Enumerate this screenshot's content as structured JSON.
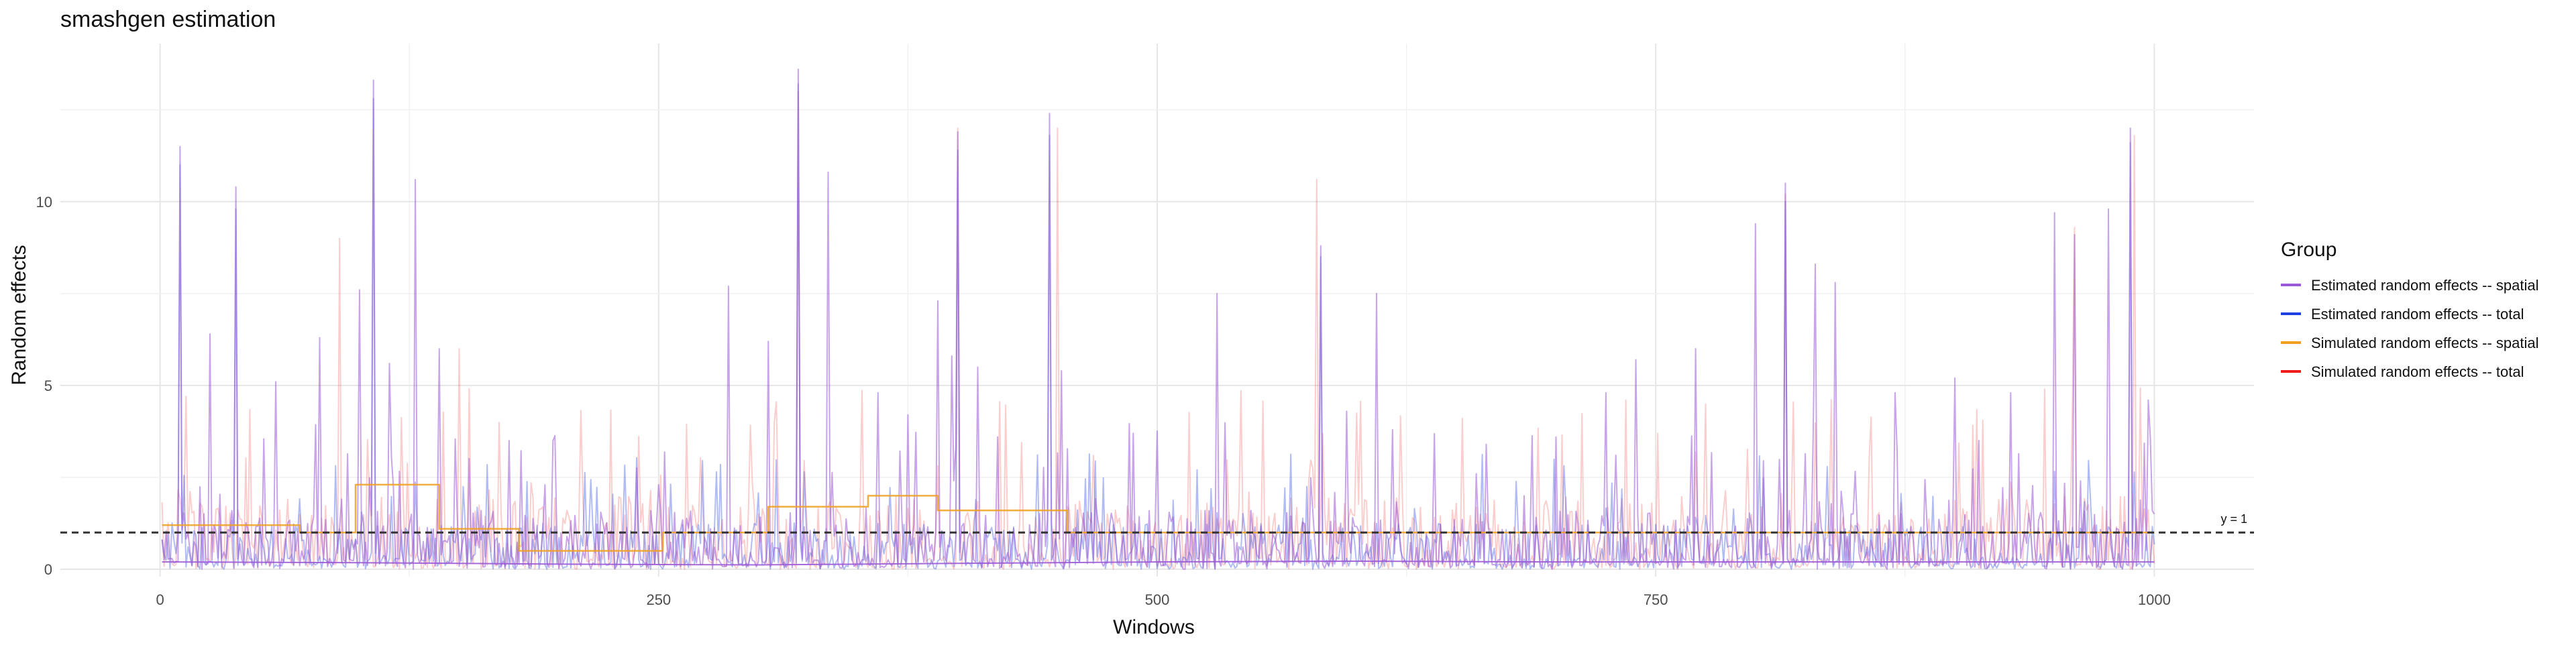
{
  "chart_data": {
    "type": "line",
    "title": "smashgen estimation",
    "xlabel": "Windows",
    "ylabel": "Random effects",
    "xlim": [
      -50,
      1050
    ],
    "ylim": [
      -0.2,
      14.3
    ],
    "x_ticks": [
      0,
      250,
      500,
      750,
      1000
    ],
    "x_tick_labels": [
      "0",
      "250",
      "500",
      "750",
      "1000"
    ],
    "y_ticks": [
      0,
      5,
      10
    ],
    "y_tick_labels": [
      "0",
      "5",
      "10"
    ],
    "grid": true,
    "legend": {
      "title": "Group",
      "placement": "right",
      "items": [
        {
          "label": "Estimated random effects -- spatial",
          "color": "#9b59d6"
        },
        {
          "label": "Estimated random effects -- total",
          "color": "#1f3fe0"
        },
        {
          "label": "Simulated random effects -- spatial",
          "color": "#f0a020"
        },
        {
          "label": "Simulated random effects -- total",
          "color": "#ee1c1c"
        }
      ]
    },
    "reference_line": {
      "y": 1,
      "label": "y = 1",
      "style": "dashed",
      "color": "#333333"
    },
    "series": [
      {
        "name": "Estimated random effects -- spatial",
        "color": "#9b59d6",
        "opacity": 0.55,
        "x_start": 1,
        "x_step": 1,
        "n": 1000,
        "peaks": [
          [
            10,
            11.5
          ],
          [
            25,
            6.4
          ],
          [
            38,
            10.4
          ],
          [
            58,
            5.1
          ],
          [
            80,
            6.3
          ],
          [
            100,
            7.6
          ],
          [
            107,
            13.3
          ],
          [
            115,
            5.6
          ],
          [
            128,
            10.6
          ],
          [
            140,
            6.0
          ],
          [
            175,
            3.5
          ],
          [
            250,
            2.3
          ],
          [
            285,
            7.7
          ],
          [
            305,
            6.2
          ],
          [
            320,
            13.6
          ],
          [
            335,
            10.8
          ],
          [
            360,
            4.8
          ],
          [
            375,
            4.2
          ],
          [
            390,
            7.3
          ],
          [
            397,
            5.8
          ],
          [
            400,
            11.9
          ],
          [
            410,
            5.5
          ],
          [
            420,
            3.6
          ],
          [
            446,
            12.4
          ],
          [
            452,
            5.4
          ],
          [
            488,
            3.7
          ],
          [
            530,
            7.5
          ],
          [
            582,
            8.8
          ],
          [
            595,
            4.3
          ],
          [
            610,
            7.5
          ],
          [
            665,
            3.4
          ],
          [
            700,
            3.6
          ],
          [
            725,
            4.8
          ],
          [
            740,
            5.7
          ],
          [
            770,
            6.0
          ],
          [
            800,
            9.4
          ],
          [
            815,
            10.5
          ],
          [
            830,
            8.3
          ],
          [
            840,
            7.8
          ],
          [
            870,
            4.8
          ],
          [
            900,
            5.2
          ],
          [
            928,
            4.8
          ],
          [
            950,
            9.7
          ],
          [
            960,
            9.1
          ],
          [
            977,
            9.8
          ],
          [
            988,
            12.0
          ],
          [
            997,
            4.6
          ]
        ],
        "base_level": 1.0,
        "base_variation": 1.6
      },
      {
        "name": "Estimated random effects -- total",
        "color": "#1f3fe0",
        "opacity": 0.35,
        "x_start": 1,
        "x_step": 1,
        "n": 1000,
        "peaks": [
          [
            10,
            11.0
          ],
          [
            38,
            9.8
          ],
          [
            107,
            12.8
          ],
          [
            320,
            13.2
          ],
          [
            400,
            11.4
          ],
          [
            446,
            11.8
          ],
          [
            582,
            8.5
          ],
          [
            815,
            10.0
          ],
          [
            988,
            11.6
          ]
        ],
        "base_level": 0.9,
        "base_variation": 1.4
      },
      {
        "name": "Simulated random effects -- spatial",
        "color": "#f0a020",
        "opacity": 0.85,
        "step_segments": [
          [
            1,
            70,
            1.2
          ],
          [
            70,
            98,
            1.0
          ],
          [
            98,
            140,
            2.3
          ],
          [
            140,
            180,
            1.1
          ],
          [
            180,
            252,
            0.5
          ],
          [
            252,
            305,
            1.0
          ],
          [
            305,
            355,
            1.7
          ],
          [
            355,
            390,
            2.0
          ],
          [
            390,
            455,
            1.6
          ],
          [
            455,
            510,
            1.0
          ],
          [
            510,
            850,
            1.0
          ],
          [
            850,
            1000,
            1.0
          ]
        ]
      },
      {
        "name": "Simulated random effects -- total",
        "color": "#ee1c1c",
        "opacity": 0.22,
        "x_start": 1,
        "x_step": 1,
        "n": 1000,
        "peaks": [
          [
            90,
            9.0
          ],
          [
            150,
            6.0
          ],
          [
            320,
            13.0
          ],
          [
            400,
            12.0
          ],
          [
            450,
            12.0
          ],
          [
            580,
            10.6
          ],
          [
            815,
            10.2
          ],
          [
            960,
            9.3
          ],
          [
            990,
            11.8
          ]
        ],
        "base_level": 1.1,
        "base_variation": 1.8
      },
      {
        "name": "Estimated random effects -- spatial (smooth)",
        "color": "#9b59d6",
        "opacity": 0.9,
        "smooth_points": [
          [
            1,
            0.2
          ],
          [
            100,
            0.18
          ],
          [
            200,
            0.14
          ],
          [
            300,
            0.12
          ],
          [
            400,
            0.16
          ],
          [
            500,
            0.2
          ],
          [
            600,
            0.22
          ],
          [
            700,
            0.2
          ],
          [
            800,
            0.2
          ],
          [
            900,
            0.2
          ],
          [
            1000,
            0.2
          ]
        ]
      }
    ]
  }
}
